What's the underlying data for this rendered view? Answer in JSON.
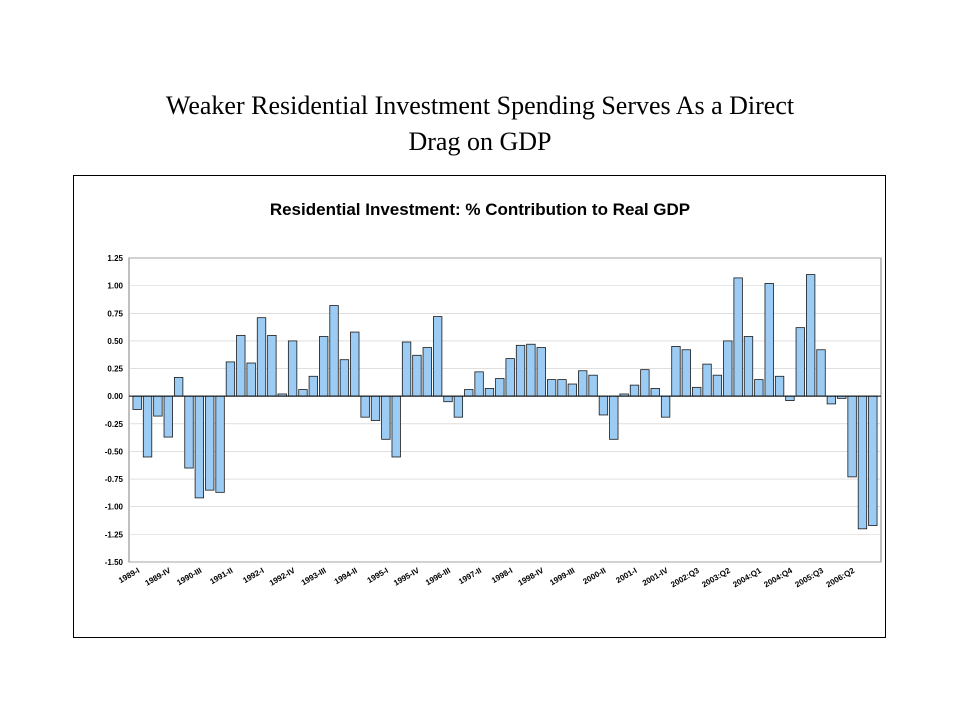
{
  "slide": {
    "title_line1": "Weaker Residential Investment Spending Serves As a Direct",
    "title_line2": "Drag on GDP"
  },
  "chart_data": {
    "type": "bar",
    "title": "Residential Investment: % Contribution to Real GDP",
    "xlabel": "",
    "ylabel": "",
    "ylim": [
      -1.5,
      1.25
    ],
    "yticks": [
      "1.25",
      "1.00",
      "0.75",
      "0.50",
      "0.25",
      "0.00",
      "-0.25",
      "-0.50",
      "-0.75",
      "-1.00",
      "-1.25",
      "-1.50"
    ],
    "ytick_values": [
      1.25,
      1.0,
      0.75,
      0.5,
      0.25,
      0.0,
      -0.25,
      -0.5,
      -0.75,
      -1.0,
      -1.25,
      -1.5
    ],
    "grid": true,
    "bar_color": "#9cccf4",
    "xtick_labels": [
      {
        "index": 0,
        "label": "1989-I"
      },
      {
        "index": 3,
        "label": "1989-IV"
      },
      {
        "index": 6,
        "label": "1990-III"
      },
      {
        "index": 9,
        "label": "1991-II"
      },
      {
        "index": 12,
        "label": "1992-I"
      },
      {
        "index": 15,
        "label": "1992-IV"
      },
      {
        "index": 18,
        "label": "1993-III"
      },
      {
        "index": 21,
        "label": "1994-II"
      },
      {
        "index": 24,
        "label": "1995-I"
      },
      {
        "index": 27,
        "label": "1995-IV"
      },
      {
        "index": 30,
        "label": "1996-III"
      },
      {
        "index": 33,
        "label": "1997-II"
      },
      {
        "index": 36,
        "label": "1998-I"
      },
      {
        "index": 39,
        "label": "1998-IV"
      },
      {
        "index": 42,
        "label": "1999-III"
      },
      {
        "index": 45,
        "label": "2000-II"
      },
      {
        "index": 48,
        "label": "2001-I"
      },
      {
        "index": 51,
        "label": "2001-IV"
      },
      {
        "index": 54,
        "label": "2002:Q3"
      },
      {
        "index": 57,
        "label": "2003:Q2"
      },
      {
        "index": 60,
        "label": "2004:Q1"
      },
      {
        "index": 63,
        "label": "2004:Q4"
      },
      {
        "index": 66,
        "label": "2005:Q3"
      },
      {
        "index": 69,
        "label": "2006:Q2"
      }
    ],
    "values": [
      -0.12,
      -0.55,
      -0.18,
      -0.37,
      0.17,
      -0.65,
      -0.92,
      -0.85,
      -0.87,
      0.31,
      0.55,
      0.3,
      0.71,
      0.55,
      0.02,
      0.5,
      0.06,
      0.18,
      0.54,
      0.82,
      0.33,
      0.58,
      -0.19,
      -0.22,
      -0.39,
      -0.55,
      0.49,
      0.37,
      0.44,
      0.72,
      -0.05,
      -0.19,
      0.06,
      0.22,
      0.07,
      0.16,
      0.34,
      0.46,
      0.47,
      0.44,
      0.15,
      0.15,
      0.11,
      0.23,
      0.19,
      -0.17,
      -0.39,
      0.02,
      0.1,
      0.24,
      0.07,
      -0.19,
      0.45,
      0.42,
      0.08,
      0.29,
      0.19,
      0.5,
      1.07,
      0.54,
      0.15,
      1.02,
      0.18,
      -0.04,
      0.62,
      1.1,
      0.42,
      -0.07,
      -0.02,
      -0.73,
      -1.2,
      -1.17
    ]
  }
}
